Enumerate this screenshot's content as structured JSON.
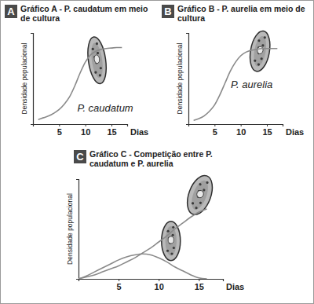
{
  "chart_data": [
    {
      "type": "line",
      "title": "Gráfico A - P. caudatum em meio de cultura",
      "annotations": [
        "A",
        "P. caudatum"
      ],
      "x_label": "Dias",
      "y_label": "Densidade populacional",
      "x": [
        1,
        2,
        3,
        4,
        5,
        6,
        7,
        8,
        9,
        10,
        11,
        12,
        13,
        14,
        15,
        16,
        17
      ],
      "values": [
        5,
        7,
        9,
        12,
        16,
        22,
        30,
        42,
        56,
        68,
        76,
        80,
        82,
        83,
        83.5,
        84,
        84
      ],
      "color": "#8a8a8a",
      "xlim": [
        0,
        18
      ],
      "xticks": [
        5,
        10,
        15
      ],
      "ylim": [
        0,
        100
      ],
      "tick_labels": "x",
      "grid": false
    },
    {
      "type": "line",
      "title": "Gráfico B - P. aurelia em meio de cultura",
      "annotations": [
        "B",
        "P. aurelia"
      ],
      "x_label": "Dias",
      "y_label": "Densidade populacional",
      "x": [
        1,
        2,
        3,
        4,
        5,
        6,
        7,
        8,
        9,
        10,
        11,
        12,
        13,
        14,
        15,
        16,
        17
      ],
      "values": [
        4,
        6,
        9,
        14,
        21,
        32,
        45,
        58,
        68,
        75,
        79,
        81,
        82,
        83,
        83,
        83,
        83
      ],
      "color": "#8a8a8a",
      "xlim": [
        0,
        18
      ],
      "xticks": [
        5,
        10,
        15
      ],
      "ylim": [
        0,
        100
      ],
      "tick_labels": "x",
      "grid": false
    },
    {
      "type": "line",
      "title": "Gráfico C - Competição entre P. caudatum e P. aurelia",
      "annotations": [
        "C"
      ],
      "x_label": "Dias",
      "y_label": "Densidade populacional",
      "x": [
        0,
        1,
        2,
        3,
        4,
        5,
        6,
        7,
        8,
        9,
        10,
        11,
        12,
        13,
        14,
        15,
        16
      ],
      "series": [
        {
          "color": "#8a8a8a",
          "values": [
            0,
            2,
            4,
            7,
            10,
            13,
            17,
            21,
            26,
            31,
            37,
            43,
            50,
            56,
            62,
            67,
            70
          ]
        },
        {
          "color": "#8a8a8a",
          "values": [
            0,
            3,
            7,
            11,
            15,
            19,
            22,
            24,
            25,
            24,
            21,
            17,
            12,
            8,
            4,
            1,
            0
          ]
        }
      ],
      "xlim": [
        0,
        18
      ],
      "xticks": [
        5,
        10,
        15
      ],
      "ylim": [
        0,
        100
      ],
      "tick_labels": "x",
      "grid": false
    }
  ]
}
